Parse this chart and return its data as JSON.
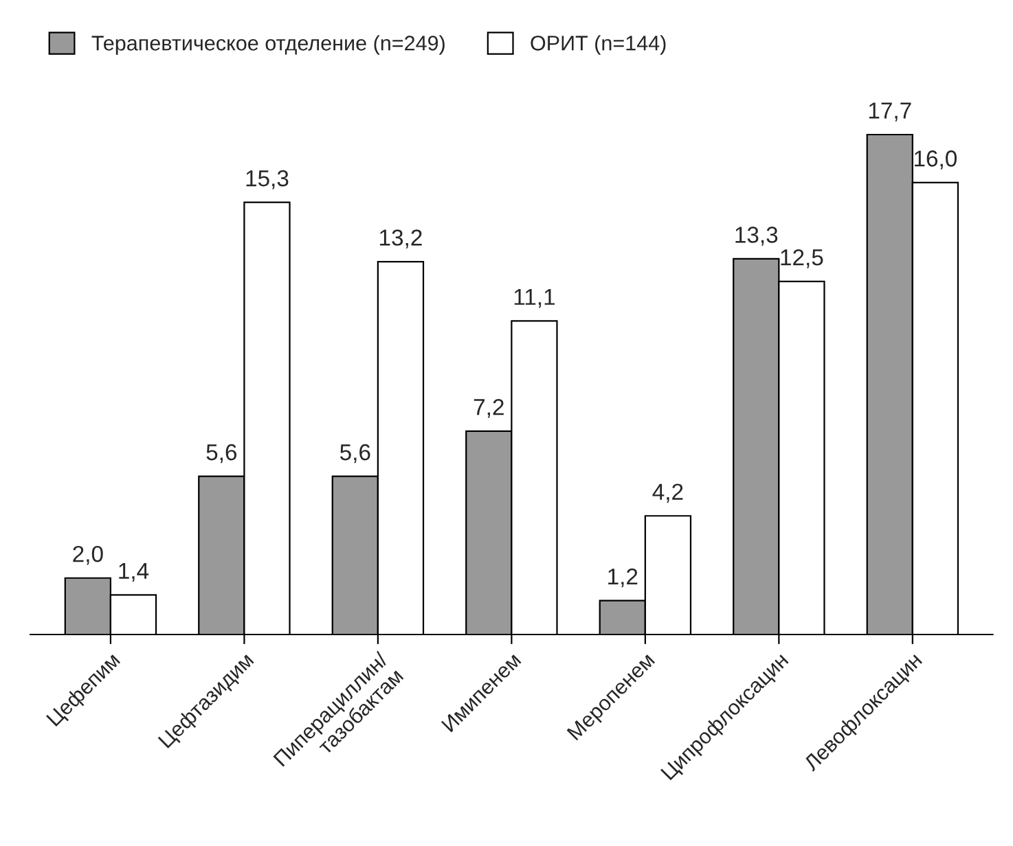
{
  "chart_data": {
    "type": "bar",
    "categories": [
      "Цефепим",
      "Цефтазидим",
      "Пиперациллин/\nтазобактам",
      "Имипенем",
      "Меропенем",
      "Ципрофлоксацин",
      "Левофлоксацин"
    ],
    "series": [
      {
        "name": "Терапевтическое отделение (n=249)",
        "color": "#999999",
        "values": [
          2.0,
          5.6,
          5.6,
          7.2,
          1.2,
          13.3,
          17.7
        ],
        "value_labels": [
          "2,0",
          "5,6",
          "5,6",
          "7,2",
          "1,2",
          "13,3",
          "17,7"
        ]
      },
      {
        "name": "ОРИТ (n=144)",
        "color": "#ffffff",
        "values": [
          1.4,
          15.3,
          13.2,
          11.1,
          4.2,
          12.5,
          16.0
        ],
        "value_labels": [
          "1,4",
          "15,3",
          "13,2",
          "11,1",
          "4,2",
          "12,5",
          "16,0"
        ]
      }
    ],
    "legend": "top left",
    "grid": false
  }
}
